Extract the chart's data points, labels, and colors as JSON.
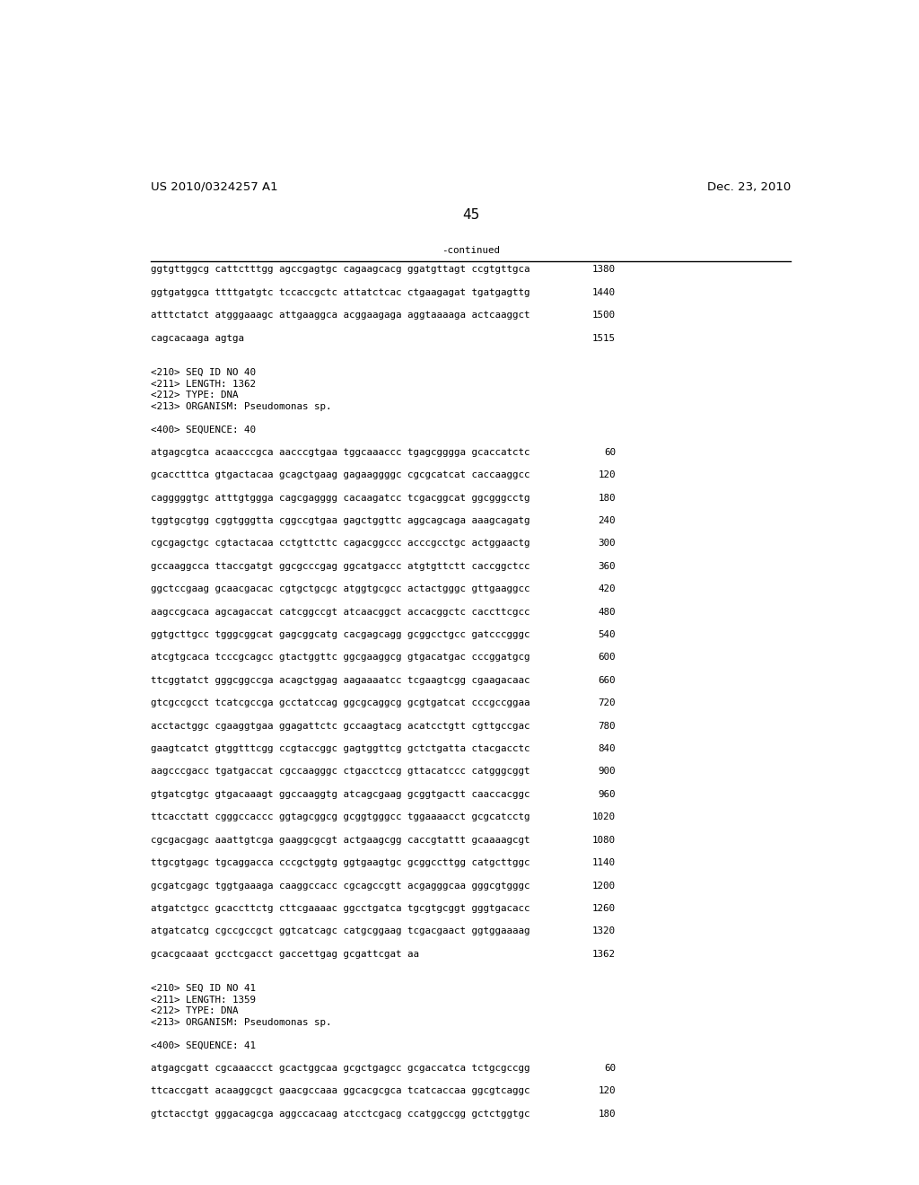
{
  "header_left": "US 2010/0324257 A1",
  "header_right": "Dec. 23, 2010",
  "page_number": "45",
  "continued_label": "-continued",
  "background_color": "#ffffff",
  "text_color": "#000000",
  "font_size_header": 9.5,
  "font_size_page": 11,
  "font_size_body": 7.8,
  "content": [
    {
      "type": "seq_line",
      "text": "ggtgttggcg cattctttgg agccgagtgc cagaagcacg ggatgttagt ccgtgttgca",
      "num": "1380"
    },
    {
      "type": "blank"
    },
    {
      "type": "seq_line",
      "text": "ggtgatggca ttttgatgtc tccaccgctc attatctcac ctgaagagat tgatgagttg",
      "num": "1440"
    },
    {
      "type": "blank"
    },
    {
      "type": "seq_line",
      "text": "atttctatct atgggaaagc attgaaggca acggaagaga aggtaaaaga actcaaggct",
      "num": "1500"
    },
    {
      "type": "blank"
    },
    {
      "type": "seq_line",
      "text": "cagcacaaga agtga",
      "num": "1515"
    },
    {
      "type": "blank"
    },
    {
      "type": "blank"
    },
    {
      "type": "meta",
      "text": "<210> SEQ ID NO 40"
    },
    {
      "type": "meta",
      "text": "<211> LENGTH: 1362"
    },
    {
      "type": "meta",
      "text": "<212> TYPE: DNA"
    },
    {
      "type": "meta",
      "text": "<213> ORGANISM: Pseudomonas sp."
    },
    {
      "type": "blank"
    },
    {
      "type": "meta",
      "text": "<400> SEQUENCE: 40"
    },
    {
      "type": "blank"
    },
    {
      "type": "seq_line",
      "text": "atgagcgtca acaacccgca aacccgtgaa tggcaaaccc tgagcgggga gcaccatctc",
      "num": "60"
    },
    {
      "type": "blank"
    },
    {
      "type": "seq_line",
      "text": "gcacctttca gtgactacaa gcagctgaag gagaaggggc cgcgcatcat caccaaggcc",
      "num": "120"
    },
    {
      "type": "blank"
    },
    {
      "type": "seq_line",
      "text": "cagggggtgc atttgtggga cagcgagggg cacaagatcc tcgacggcat ggcgggcctg",
      "num": "180"
    },
    {
      "type": "blank"
    },
    {
      "type": "seq_line",
      "text": "tggtgcgtgg cggtgggtta cggccgtgaa gagctggttc aggcagcaga aaagcagatg",
      "num": "240"
    },
    {
      "type": "blank"
    },
    {
      "type": "seq_line",
      "text": "cgcgagctgc cgtactacaa cctgttcttc cagacggccc acccgcctgc actggaactg",
      "num": "300"
    },
    {
      "type": "blank"
    },
    {
      "type": "seq_line",
      "text": "gccaaggcca ttaccgatgt ggcgcccgag ggcatgaccc atgtgttctt caccggctcc",
      "num": "360"
    },
    {
      "type": "blank"
    },
    {
      "type": "seq_line",
      "text": "ggctccgaag gcaacgacac cgtgctgcgc atggtgcgcc actactgggc gttgaaggcc",
      "num": "420"
    },
    {
      "type": "blank"
    },
    {
      "type": "seq_line",
      "text": "aagccgcaca agcagaccat catcggccgt atcaacggct accacggctc caccttcgcc",
      "num": "480"
    },
    {
      "type": "blank"
    },
    {
      "type": "seq_line",
      "text": "ggtgcttgcc tgggcggcat gagcggcatg cacgagcagg gcggcctgcc gatcccgggc",
      "num": "540"
    },
    {
      "type": "blank"
    },
    {
      "type": "seq_line",
      "text": "atcgtgcaca tcccgcagcc gtactggttc ggcgaaggcg gtgacatgac cccggatgcg",
      "num": "600"
    },
    {
      "type": "blank"
    },
    {
      "type": "seq_line",
      "text": "ttcggtatct gggcggccga acagctggag aagaaaatcc tcgaagtcgg cgaagacaac",
      "num": "660"
    },
    {
      "type": "blank"
    },
    {
      "type": "seq_line",
      "text": "gtcgccgcct tcatcgccga gcctatccag ggcgcaggcg gcgtgatcat cccgccggaa",
      "num": "720"
    },
    {
      "type": "blank"
    },
    {
      "type": "seq_line",
      "text": "acctactggc cgaaggtgaa ggagattctc gccaagtacg acatcctgtt cgttgccgac",
      "num": "780"
    },
    {
      "type": "blank"
    },
    {
      "type": "seq_line",
      "text": "gaagtcatct gtggtttcgg ccgtaccggc gagtggttcg gctctgatta ctacgacctc",
      "num": "840"
    },
    {
      "type": "blank"
    },
    {
      "type": "seq_line",
      "text": "aagcccgacc tgatgaccat cgccaagggc ctgacctccg gttacatccc catgggcggt",
      "num": "900"
    },
    {
      "type": "blank"
    },
    {
      "type": "seq_line",
      "text": "gtgatcgtgc gtgacaaagt ggccaaggtg atcagcgaag gcggtgactt caaccacggc",
      "num": "960"
    },
    {
      "type": "blank"
    },
    {
      "type": "seq_line",
      "text": "ttcacctatt cgggccaccc ggtagcggcg gcggtgggcc tggaaaacct gcgcatcctg",
      "num": "1020"
    },
    {
      "type": "blank"
    },
    {
      "type": "seq_line",
      "text": "cgcgacgagc aaattgtcga gaaggcgcgt actgaagcgg caccgtattt gcaaaagcgt",
      "num": "1080"
    },
    {
      "type": "blank"
    },
    {
      "type": "seq_line",
      "text": "ttgcgtgagc tgcaggacca cccgctggtg ggtgaagtgc gcggccttgg catgcttggc",
      "num": "1140"
    },
    {
      "type": "blank"
    },
    {
      "type": "seq_line",
      "text": "gcgatcgagc tggtgaaaga caaggccacc cgcagccgtt acgagggcaa gggcgtgggc",
      "num": "1200"
    },
    {
      "type": "blank"
    },
    {
      "type": "seq_line",
      "text": "atgatctgcc gcaccttctg cttcgaaaac ggcctgatca tgcgtgcggt gggtgacacc",
      "num": "1260"
    },
    {
      "type": "blank"
    },
    {
      "type": "seq_line",
      "text": "atgatcatcg cgccgccgct ggtcatcagc catgcggaag tcgacgaact ggtggaaaag",
      "num": "1320"
    },
    {
      "type": "blank"
    },
    {
      "type": "seq_line",
      "text": "gcacgcaaat gcctcgacct gaccettgag gcgattcgat aa",
      "num": "1362"
    },
    {
      "type": "blank"
    },
    {
      "type": "blank"
    },
    {
      "type": "meta",
      "text": "<210> SEQ ID NO 41"
    },
    {
      "type": "meta",
      "text": "<211> LENGTH: 1359"
    },
    {
      "type": "meta",
      "text": "<212> TYPE: DNA"
    },
    {
      "type": "meta",
      "text": "<213> ORGANISM: Pseudomonas sp."
    },
    {
      "type": "blank"
    },
    {
      "type": "meta",
      "text": "<400> SEQUENCE: 41"
    },
    {
      "type": "blank"
    },
    {
      "type": "seq_line",
      "text": "atgagcgatt cgcaaaccct gcactggcaa gcgctgagcc gcgaccatca tctgcgccgg",
      "num": "60"
    },
    {
      "type": "blank"
    },
    {
      "type": "seq_line",
      "text": "ttcaccgatt acaaggcgct gaacgccaaa ggcacgcgca tcatcaccaa ggcgtcaggc",
      "num": "120"
    },
    {
      "type": "blank"
    },
    {
      "type": "seq_line",
      "text": "gtctacctgt gggacagcga aggccacaag atcctcgacg ccatggccgg gctctggtgc",
      "num": "180"
    }
  ]
}
